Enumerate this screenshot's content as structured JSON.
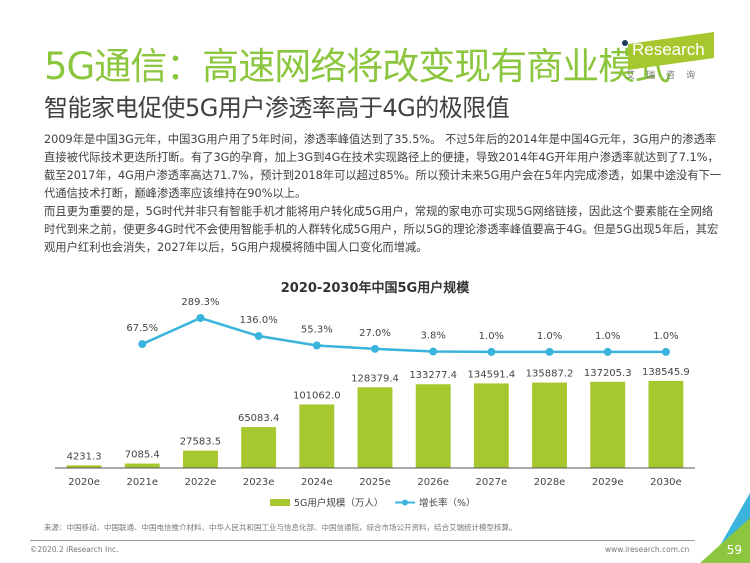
{
  "header": {
    "title": "5G通信：高速网络将改变现有商业模式",
    "subtitle": "智能家电促使5G用户渗透率高于4G的极限值",
    "logo_text": "Research",
    "logo_cn": "艾瑞咨询"
  },
  "body": {
    "paragraphs": [
      "2009年是中国3G元年，中国3G用户用了5年时间，渗透率峰值达到了35.5%。 不过5年后的2014年是中国4G元年，3G用户的渗透率直接被代际技术更迭所打断。有了3G的孕育，加上3G到4G在技术实现路径上的便捷，导致2014年4G开年用户渗透率就达到了7.1%，截至2017年，4G用户渗透率高达71.7%，预计到2018年可以超过85%。所以预计未来5G用户会在5年内完成渗透，如果中途没有下一代通信技术打断，巅峰渗透率应该维持在90%以上。",
      "而且更为重要的是，5G时代并非只有智能手机才能将用户转化成5G用户，常规的家电亦可实现5G网络链接，因此这个要素能在全网络时代到来之前，使更多4G时代不会使用智能手机的人群转化成5G用户，所以5G的理论渗透率峰值要高于4G。但是5G出现5年后，其宏观用户红利也会消失，2027年以后，5G用户规模将随中国人口变化而增减。"
    ]
  },
  "chart_data": {
    "type": "bar",
    "title": "2020-2030年中国5G用户规模",
    "categories": [
      "2020e",
      "2021e",
      "2022e",
      "2023e",
      "2024e",
      "2025e",
      "2026e",
      "2027e",
      "2028e",
      "2029e",
      "2030e"
    ],
    "series": [
      {
        "name": "5G用户规模（万人）",
        "type": "bar",
        "color": "#a6c72e",
        "values": [
          4231.3,
          7085.4,
          27583.5,
          65083.4,
          101062.0,
          128379.4,
          133277.4,
          134591.4,
          135887.2,
          137205.3,
          138545.9
        ],
        "labels": [
          "4231.3",
          "7085.4",
          "27583.5",
          "65083.4",
          "101062.0",
          "128379.4",
          "133277.4",
          "134591.4",
          "135887.2",
          "137205.3",
          "138545.9"
        ]
      },
      {
        "name": "增长率（%）",
        "type": "line",
        "color": "#3ab4dc",
        "values": [
          null,
          67.5,
          289.3,
          136.0,
          55.3,
          27.0,
          3.8,
          1.0,
          1.0,
          1.0,
          1.0
        ],
        "labels": [
          null,
          "67.5%",
          "289.3%",
          "136.0%",
          "55.3%",
          "27.0%",
          "3.8%",
          "1.0%",
          "1.0%",
          "1.0%",
          "1.0%"
        ]
      }
    ],
    "legend": [
      "5G用户规模（万人）",
      "增长率（%）"
    ],
    "legend_position": "bottom",
    "grid": false
  },
  "footer": {
    "source": "来源：中国移动、中国联通、中国电信推介材料、中华人民共和国工业与信息化部、中国信通院，综合市场公开资料，结合艾瑞统计模型核算。",
    "copyright": "©2020.2 iResearch Inc.",
    "website": "www.iresearch.com.cn",
    "page_number": "59"
  }
}
